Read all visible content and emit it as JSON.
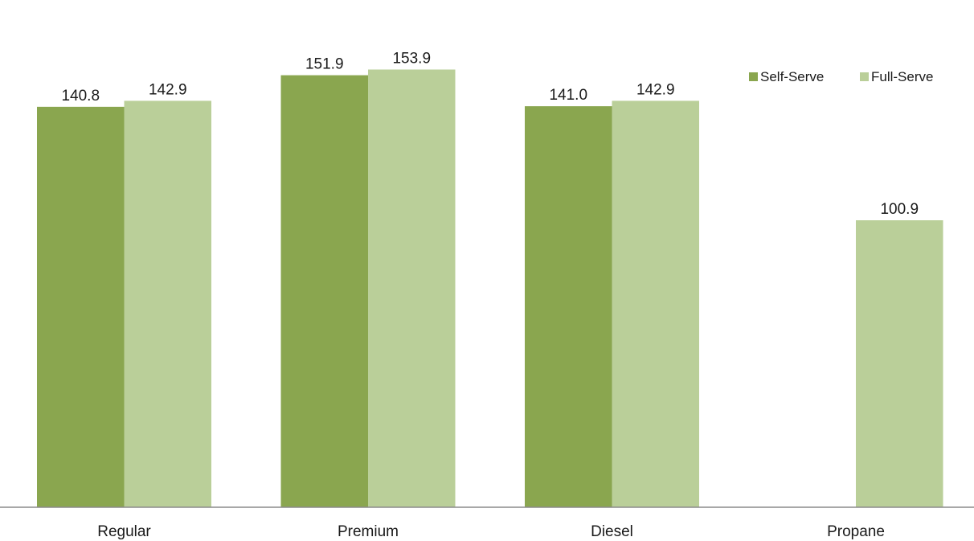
{
  "chart_data": {
    "type": "bar",
    "categories": [
      "Regular",
      "Premium",
      "Diesel",
      "Propane"
    ],
    "series": [
      {
        "name": "Self-Serve",
        "color": "#8aa64f",
        "values": [
          140.8,
          151.9,
          141.0,
          null
        ],
        "labels": [
          "140.8",
          "151.9",
          "141.0",
          ""
        ]
      },
      {
        "name": "Full-Serve",
        "color": "#bacf99",
        "values": [
          142.9,
          153.9,
          142.9,
          100.9
        ],
        "labels": [
          "142.9",
          "153.9",
          "142.9",
          "100.9"
        ]
      }
    ],
    "ylim": [
      0,
      160
    ],
    "axis_color": "#8c8c8c",
    "grid": false,
    "legend_position": "top-right"
  }
}
